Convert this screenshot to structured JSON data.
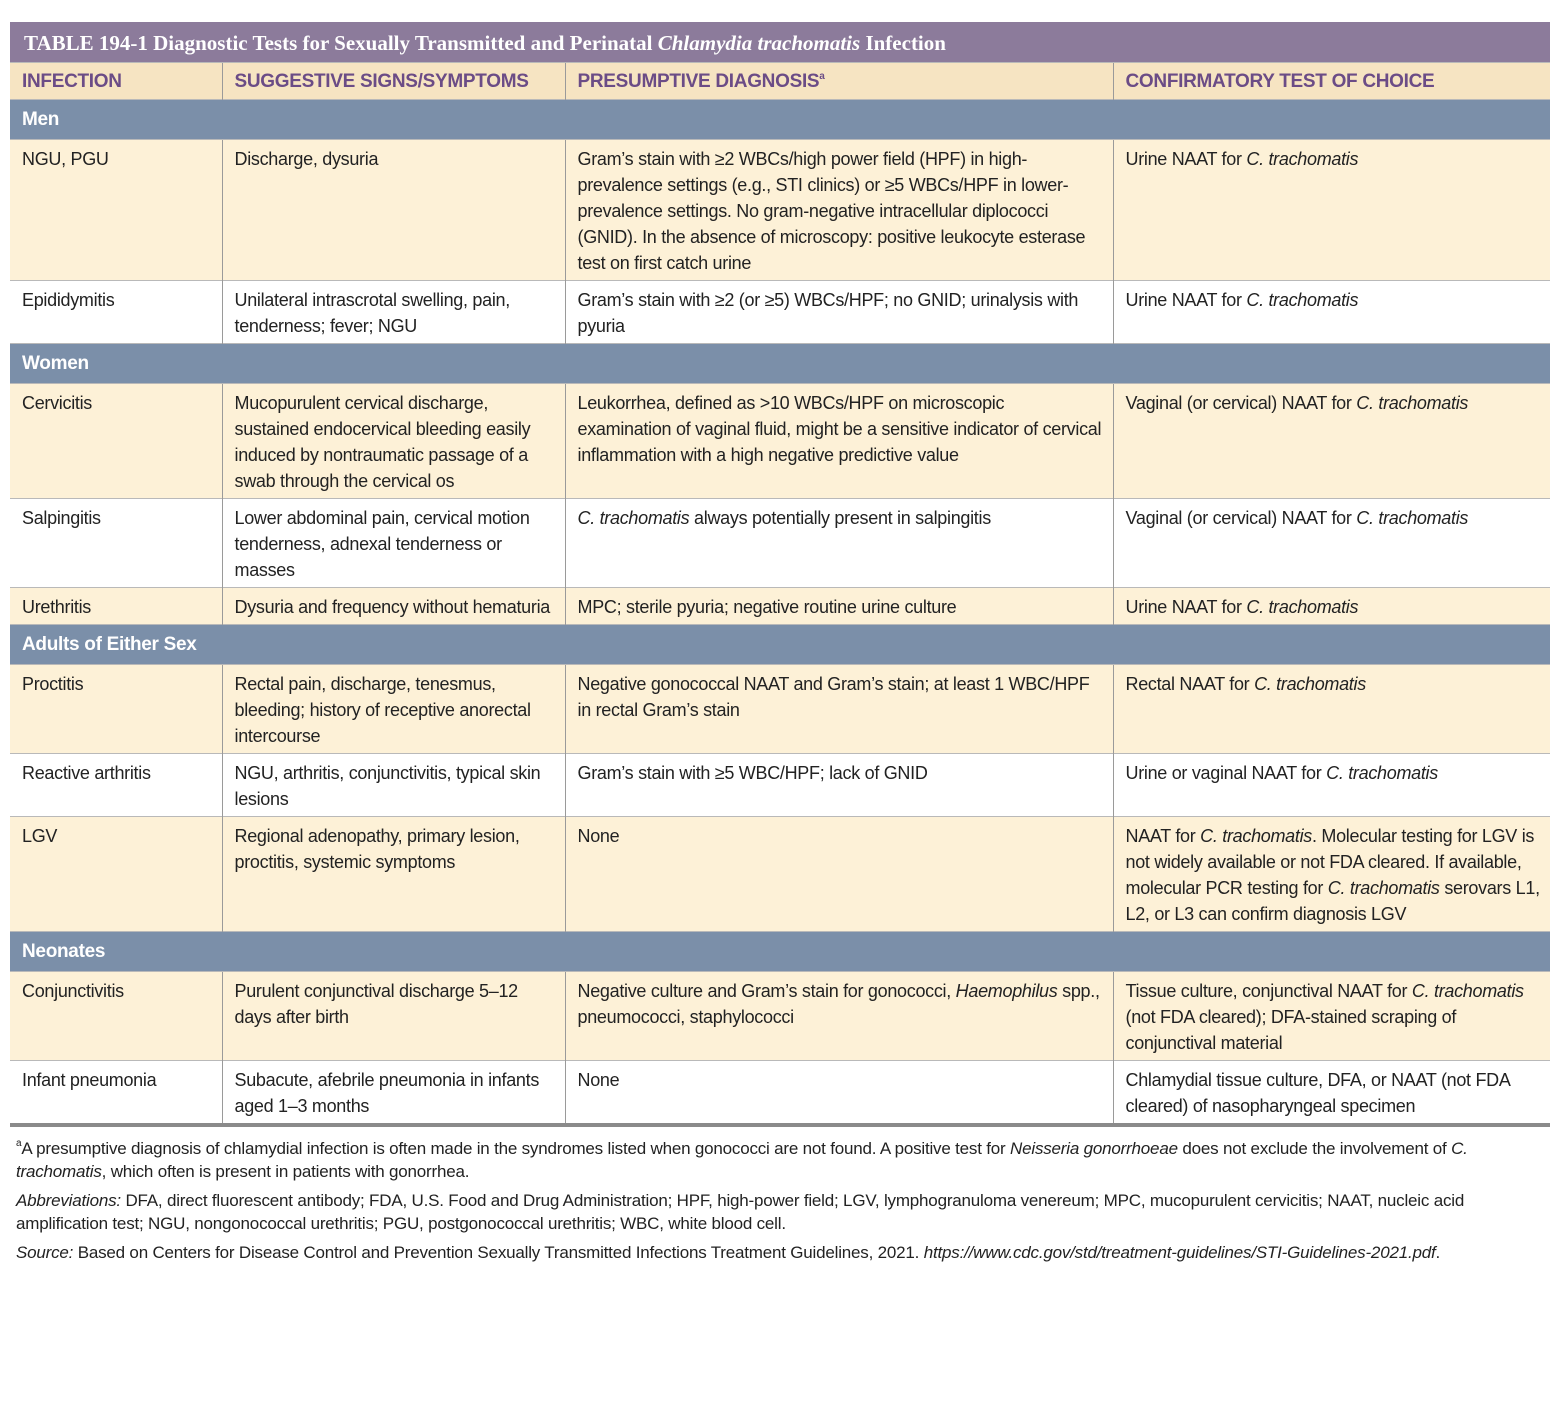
{
  "title": [
    {
      "text": "TABLE 194-1  Diagnostic Tests for Sexually Transmitted and Perinatal "
    },
    {
      "text": "Chlamydia trachomatis",
      "italic": true
    },
    {
      "text": " Infection"
    }
  ],
  "table": {
    "header": [
      "INFECTION",
      "SUGGESTIVE SIGNS/SYMPTOMS",
      [
        {
          "text": "PRESUMPTIVE DIAGNOSIS"
        },
        {
          "text": "a",
          "sup": true
        }
      ],
      "CONFIRMATORY TEST OF CHOICE"
    ],
    "sections": [
      {
        "label": "Men",
        "rows": [
          [
            "NGU, PGU",
            "Discharge, dysuria",
            "Gram’s stain with ≥2 WBCs/high power field (HPF) in high-prevalence settings (e.g., STI clinics) or ≥5 WBCs/HPF in lower-prevalence settings. No gram-negative intracellular diplococci (GNID). In the absence of microscopy: positive leukocyte esterase test on first catch urine",
            [
              {
                "text": "Urine NAAT for "
              },
              {
                "text": "C. trachomatis",
                "italic": true
              }
            ]
          ],
          [
            "Epididymitis",
            "Unilateral intrascrotal swelling, pain, tenderness; fever; NGU",
            "Gram’s stain with ≥2 (or ≥5) WBCs/HPF; no GNID; urinalysis with pyuria",
            [
              {
                "text": "Urine NAAT for "
              },
              {
                "text": "C. trachomatis",
                "italic": true
              }
            ]
          ]
        ]
      },
      {
        "label": "Women",
        "rows": [
          [
            "Cervicitis",
            "Mucopurulent cervical discharge, sustained endocervical bleeding easily induced by nontraumatic passage of a swab through the cervical os",
            "Leukorrhea, defined as >10 WBCs/HPF on microscopic examination of vaginal fluid, might be a sensitive indicator of cervical inflammation with a high negative predictive value",
            [
              {
                "text": "Vaginal (or cervical) NAAT for "
              },
              {
                "text": "C. trachomatis",
                "italic": true
              }
            ]
          ],
          [
            "Salpingitis",
            "Lower abdominal pain, cervical motion tenderness, adnexal tenderness or masses",
            [
              {
                "text": "C. trachomatis",
                "italic": true
              },
              {
                "text": " always potentially present in salpingitis"
              }
            ],
            [
              {
                "text": "Vaginal (or cervical) NAAT for "
              },
              {
                "text": "C. trachomatis",
                "italic": true
              }
            ]
          ],
          [
            "Urethritis",
            "Dysuria and frequency without hematuria",
            "MPC; sterile pyuria; negative routine urine culture",
            [
              {
                "text": "Urine NAAT for "
              },
              {
                "text": "C. trachomatis",
                "italic": true
              }
            ]
          ]
        ]
      },
      {
        "label": "Adults of Either Sex",
        "rows": [
          [
            "Proctitis",
            "Rectal pain, discharge, tenesmus, bleeding; history of receptive anorectal intercourse",
            "Negative gonococcal NAAT and Gram’s stain; at least 1 WBC/HPF in rectal Gram’s stain",
            [
              {
                "text": "Rectal NAAT for "
              },
              {
                "text": "C. trachomatis",
                "italic": true
              }
            ]
          ],
          [
            "Reactive arthritis",
            "NGU, arthritis, conjunctivitis, typical skin lesions",
            "Gram’s stain with ≥5 WBC/HPF; lack of GNID",
            [
              {
                "text": "Urine or vaginal NAAT for "
              },
              {
                "text": "C. trachomatis",
                "italic": true
              }
            ]
          ],
          [
            "LGV",
            "Regional adenopathy, primary lesion, proctitis, systemic symptoms",
            "None",
            [
              {
                "text": "NAAT for "
              },
              {
                "text": "C. trachomatis",
                "italic": true
              },
              {
                "text": ". Molecular testing for LGV is not widely available or not FDA cleared. If available, molecular PCR testing for "
              },
              {
                "text": "C. trachomatis",
                "italic": true
              },
              {
                "text": " serovars L1, L2, or L3 can confirm diagnosis LGV"
              }
            ]
          ]
        ]
      },
      {
        "label": "Neonates",
        "rows": [
          [
            "Conjunctivitis",
            "Purulent conjunctival discharge 5–12 days after birth",
            [
              {
                "text": "Negative culture and Gram’s stain for gonococci, "
              },
              {
                "text": "Haemophilus",
                "italic": true
              },
              {
                "text": " spp., pneumococci, staphylococci"
              }
            ],
            [
              {
                "text": "Tissue culture, conjunctival NAAT for "
              },
              {
                "text": "C. trachomatis",
                "italic": true
              },
              {
                "text": " (not FDA cleared); DFA-stained scraping of conjunctival material"
              }
            ]
          ],
          [
            "Infant pneumonia",
            "Subacute, afebrile pneumonia in infants aged 1–3 months",
            "None",
            "Chlamydial tissue culture, DFA, or NAAT (not FDA cleared) of nasopharyngeal specimen"
          ]
        ]
      }
    ]
  },
  "footnotes": [
    [
      {
        "text": "a",
        "sup": true
      },
      {
        "text": "A presumptive diagnosis of chlamydial infection is often made in the syndromes listed when gonococci are not found. A positive test for "
      },
      {
        "text": "Neisseria gonorrhoeae",
        "italic": true
      },
      {
        "text": " does not exclude the involvement of "
      },
      {
        "text": "C. trachomatis",
        "italic": true
      },
      {
        "text": ", which often is present in patients with gonorrhea."
      }
    ],
    [
      {
        "text": "Abbreviations:",
        "italic": true
      },
      {
        "text": " DFA, direct fluorescent antibody; FDA, U.S. Food and Drug Administration; HPF, high-power field; LGV, lymphogranuloma venereum; MPC, mucopurulent cervicitis; NAAT, nucleic acid amplification test; NGU, nongonococcal urethritis; PGU, postgonococcal urethritis; WBC, white blood cell."
      }
    ],
    [
      {
        "text": "Source:",
        "italic": true
      },
      {
        "text": " Based on Centers for Disease Control and Prevention Sexually Transmitted Infections Treatment Guidelines, 2021. "
      },
      {
        "text": "https://www.cdc.gov/std/treatment-guidelines/STI-Guidelines-2021.pdf",
        "italic": true
      },
      {
        "text": "."
      }
    ]
  ]
}
